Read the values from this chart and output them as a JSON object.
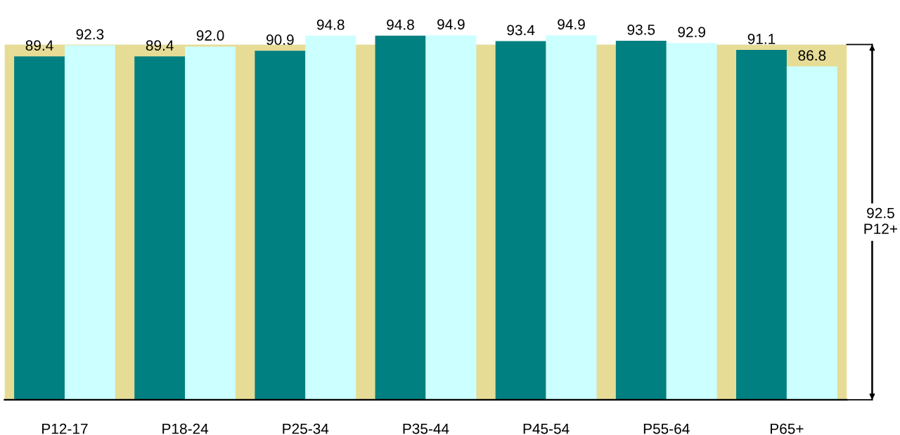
{
  "chart_data": {
    "type": "bar",
    "categories": [
      "P12-17",
      "P18-24",
      "P25-34",
      "P35-44",
      "P45-54",
      "P55-64",
      "P65+"
    ],
    "series": [
      {
        "color": "#008080",
        "values": [
          89.4,
          89.4,
          90.9,
          94.8,
          93.4,
          93.5,
          91.1
        ],
        "value_labels": [
          "89.4",
          "89.4",
          "90.9",
          "94.8",
          "93.4",
          "93.5",
          "91.1"
        ]
      },
      {
        "color": "#ccffff",
        "values": [
          92.3,
          92.0,
          94.8,
          94.9,
          94.9,
          92.9,
          86.8
        ],
        "value_labels": [
          "92.3",
          "92.0",
          "94.8",
          "94.9",
          "94.9",
          "92.9",
          "86.8"
        ]
      }
    ],
    "tick_labels": "x",
    "grid": false,
    "legend": false,
    "bands": [
      {
        "axis": "y",
        "from": 0,
        "to": 92.5,
        "label": "92.5\nP12+",
        "color": "#e6dc96"
      }
    ]
  }
}
